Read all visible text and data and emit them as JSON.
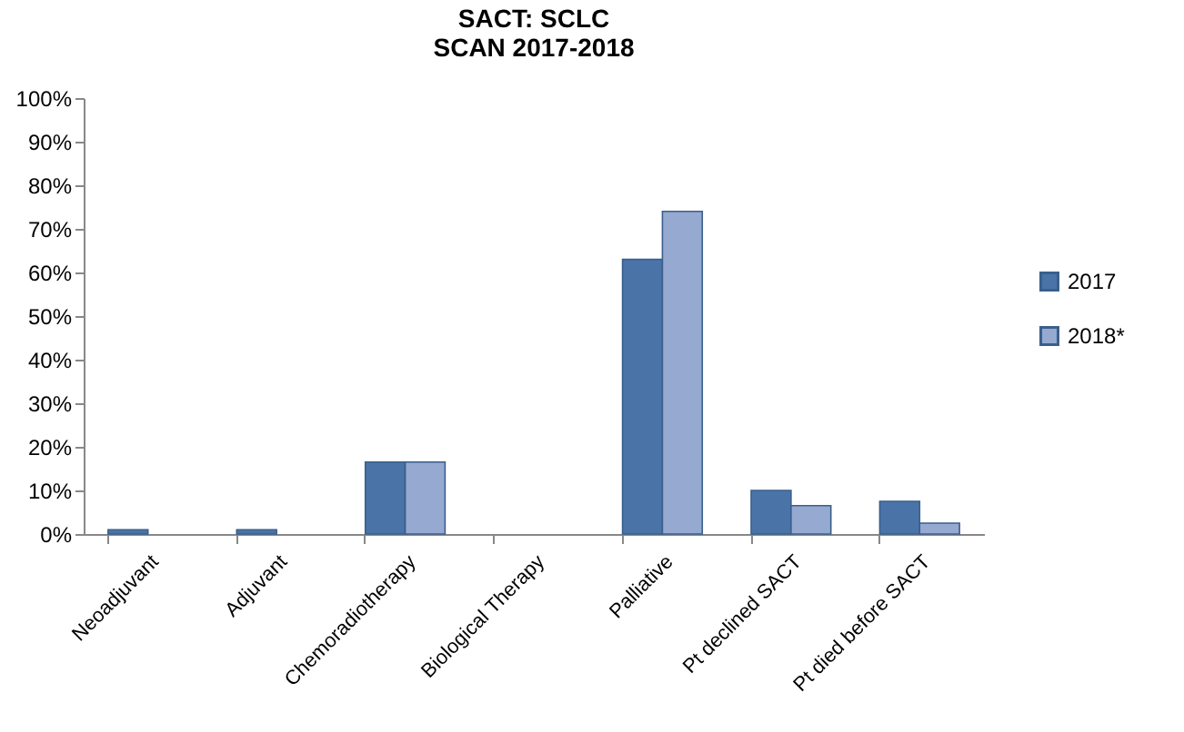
{
  "chart_data": {
    "type": "bar",
    "title": "SACT: SCLC",
    "subtitle": "SCAN 2017-2018",
    "categories": [
      "Neoadjuvant",
      "Adjuvant",
      "Chemoradiotherapy",
      "Biological Therapy",
      "Palliative",
      "Pt declined SACT",
      "Pt died before SACT"
    ],
    "series": [
      {
        "name": "2017",
        "color": "#4a74a8",
        "values": [
          1,
          1,
          16.5,
          0,
          63,
          10,
          7.5
        ]
      },
      {
        "name": "2018*",
        "color": "#95a9d1",
        "values": [
          0,
          0,
          16.5,
          0,
          74,
          6.5,
          2.5
        ]
      }
    ],
    "ylim": [
      0,
      100
    ],
    "yticks": [
      {
        "value": 0,
        "label": "0%"
      },
      {
        "value": 10,
        "label": "10%"
      },
      {
        "value": 20,
        "label": "20%"
      },
      {
        "value": 30,
        "label": "30%"
      },
      {
        "value": 40,
        "label": "40%"
      },
      {
        "value": 50,
        "label": "50%"
      },
      {
        "value": 60,
        "label": "60%"
      },
      {
        "value": 70,
        "label": "70%"
      },
      {
        "value": 80,
        "label": "80%"
      },
      {
        "value": 90,
        "label": "90%"
      },
      {
        "value": 100,
        "label": "100%"
      }
    ],
    "grid": false,
    "legend": "right"
  }
}
